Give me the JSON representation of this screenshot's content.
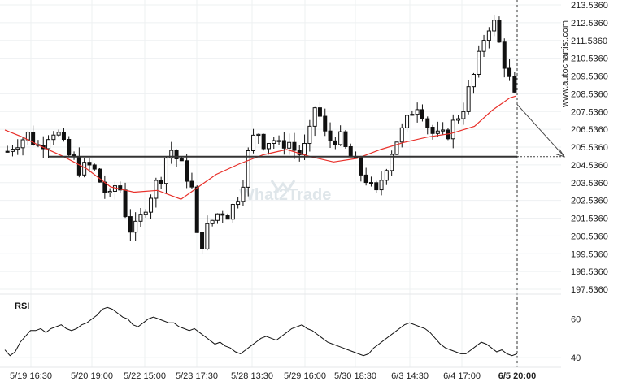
{
  "brand": "www.autochartist.com",
  "watermark": "What2Trade",
  "colors": {
    "candle": "#111111",
    "moving_average": "#e8302a",
    "support_line": "#333333",
    "forecast": "#444444",
    "grid": "#eef0f2",
    "rsi_line": "#111111"
  },
  "chart_data": [
    {
      "type": "candlestick",
      "title": "",
      "xlabel": "",
      "ylabel": "",
      "ylim": [
        197.0,
        213.536
      ],
      "grid": true,
      "y_ticks": [
        "213.5360",
        "212.5360",
        "211.5360",
        "210.5360",
        "209.5360",
        "208.5360",
        "207.5360",
        "206.5360",
        "205.5360",
        "204.5360",
        "203.5360",
        "202.5360",
        "201.5360",
        "200.5360",
        "199.5360",
        "198.5360",
        "197.5360"
      ],
      "x_ticks": [
        "5/19 16:30",
        "5/20 19:00",
        "5/22 15:00",
        "5/23 17:30",
        "5/28 13:30",
        "5/29 16:00",
        "5/30 18:30",
        "6/3 14:30",
        "6/4 17:00",
        "6/5 20:00"
      ],
      "last_tick_bold": "6/5 20:00",
      "horizontal_level": 205.0,
      "forecast_target": 205.0,
      "close_path": [
        205.3,
        205.8,
        206.0,
        206.3,
        205.5,
        205.9,
        206.6,
        206.2,
        205.2,
        204.8,
        204.2,
        204.5,
        204.1,
        203.2,
        202.6,
        203.8,
        201.9,
        200.6,
        201.4,
        202.5,
        203.3,
        204.0,
        205.6,
        204.9,
        204.2,
        203.5,
        199.6,
        200.8,
        201.5,
        202.0,
        201.8,
        202.4,
        203.6,
        205.6,
        206.5,
        205.7,
        206.1,
        205.5,
        206.0,
        205.4,
        205.1,
        206.0,
        208.2,
        206.3,
        205.9,
        206.2,
        205.4,
        204.8,
        204.1,
        203.7,
        202.6,
        203.9,
        205.1,
        206.0,
        206.6,
        207.6,
        208.1,
        206.9,
        206.2,
        206.0,
        206.4,
        207.1,
        207.8,
        209.0,
        210.3,
        212.0,
        212.8,
        211.2,
        209.7,
        208.3
      ],
      "moving_average_points": [
        [
          0,
          206.5
        ],
        [
          3,
          206.1
        ],
        [
          6,
          205.6
        ],
        [
          10,
          205.0
        ],
        [
          14,
          204.3
        ],
        [
          18,
          203.3
        ],
        [
          22,
          203.0
        ],
        [
          26,
          203.1
        ],
        [
          30,
          202.6
        ],
        [
          33,
          203.3
        ],
        [
          36,
          204.0
        ],
        [
          40,
          204.6
        ],
        [
          44,
          205.1
        ],
        [
          48,
          205.4
        ],
        [
          52,
          205.0
        ],
        [
          56,
          204.7
        ],
        [
          60,
          204.9
        ],
        [
          64,
          205.4
        ],
        [
          68,
          205.8
        ],
        [
          72,
          206.1
        ],
        [
          76,
          206.3
        ],
        [
          80,
          206.7
        ],
        [
          83,
          207.6
        ],
        [
          86,
          208.3
        ],
        [
          87,
          208.4
        ]
      ]
    },
    {
      "type": "line",
      "title": "RSI",
      "ylim": [
        35,
        72
      ],
      "y_ticks": [
        "60",
        "40"
      ],
      "values": [
        44,
        41,
        43,
        48,
        51,
        54,
        54,
        55,
        53,
        55,
        56,
        57,
        55,
        54,
        55,
        57,
        58,
        60,
        62,
        65,
        66,
        65,
        63,
        61,
        60,
        57,
        56,
        58,
        60,
        61,
        60,
        59,
        58,
        58,
        56,
        55,
        54,
        55,
        53,
        51,
        49,
        47,
        48,
        46,
        45,
        43,
        42,
        44,
        46,
        48,
        50,
        51,
        50,
        49,
        51,
        53,
        55,
        56,
        57,
        55,
        54,
        52,
        50,
        48,
        47,
        46,
        45,
        44,
        43,
        42,
        41,
        42,
        45,
        47,
        49,
        51,
        53,
        55,
        57,
        58,
        57,
        56,
        55,
        53,
        50,
        47,
        45,
        44,
        43,
        42,
        42,
        44,
        46,
        48,
        47,
        45,
        43,
        44,
        42,
        41,
        42
      ]
    }
  ]
}
